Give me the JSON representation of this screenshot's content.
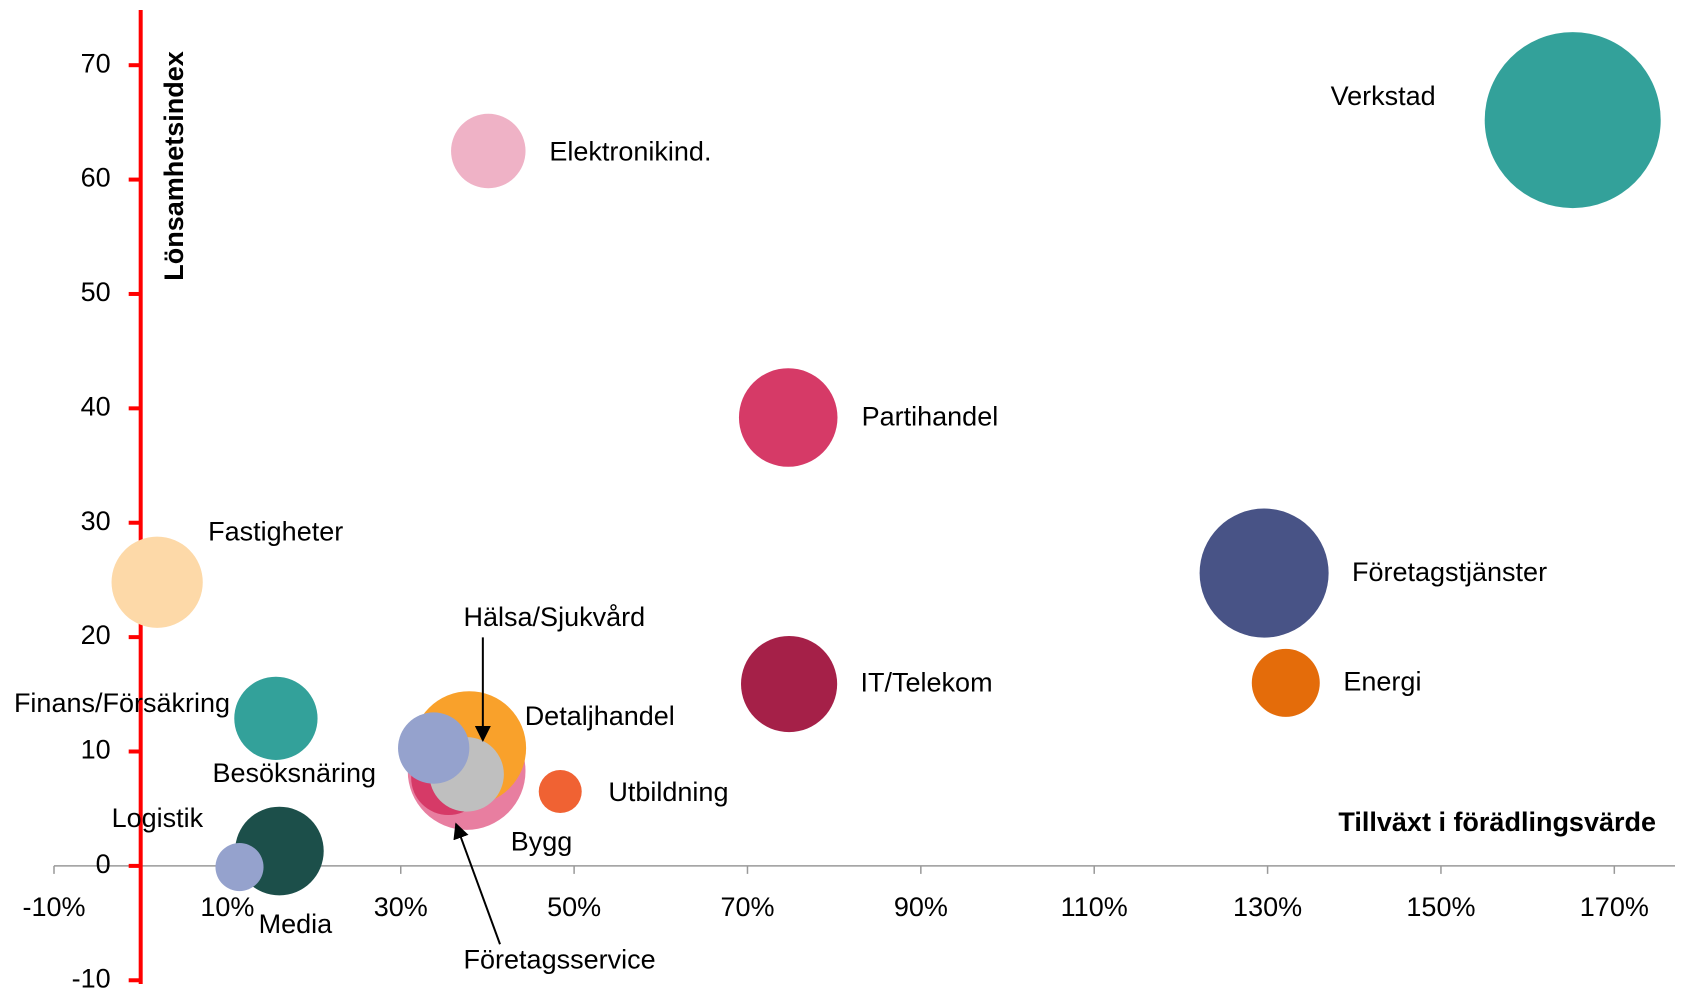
{
  "chart_data": {
    "type": "bubble",
    "x_label": "Tillväxt i förädlingsvärde",
    "y_label": "Lönsamhetsindex",
    "xlim": [
      -10,
      177
    ],
    "ylim": [
      -10.5,
      75
    ],
    "xticks": [
      {
        "value": -10,
        "label": "-10%"
      },
      {
        "value": 10,
        "label": "10%"
      },
      {
        "value": 30,
        "label": "30%"
      },
      {
        "value": 50,
        "label": "50%"
      },
      {
        "value": 70,
        "label": "70%"
      },
      {
        "value": 90,
        "label": "90%"
      },
      {
        "value": 110,
        "label": "110%"
      },
      {
        "value": 130,
        "label": "130%"
      },
      {
        "value": 150,
        "label": "150%"
      },
      {
        "value": 170,
        "label": "170%"
      }
    ],
    "yticks": [
      -10,
      0,
      10,
      20,
      30,
      40,
      50,
      60,
      70
    ],
    "y_axis_color": "#ff0000",
    "series": [
      {
        "name": "Verkstad",
        "color": "#33a19a",
        "x": 165.2,
        "y": 65.2,
        "size": 67
      },
      {
        "name": "Elektronikind.",
        "color": "#efb2c6",
        "x": 40.1,
        "y": 62.5,
        "size": 12
      },
      {
        "name": "Partihandel",
        "color": "#d63a67",
        "x": 74.7,
        "y": 39.2,
        "size": 21
      },
      {
        "name": "Fastigheter",
        "color": "#fdd9a8",
        "x": 1.9,
        "y": 24.8,
        "size": 18
      },
      {
        "name": "Företagstjänster",
        "color": "#485386",
        "x": 129.6,
        "y": 25.6,
        "size": 36
      },
      {
        "name": "Energi",
        "color": "#e46c0a",
        "x": 132.1,
        "y": 16.0,
        "size": 10
      },
      {
        "name": "IT/Telekom",
        "color": "#a52048",
        "x": 74.8,
        "y": 15.9,
        "size": 20
      },
      {
        "name": "Finans/Försäkring",
        "color": "#33a19a",
        "x": 15.6,
        "y": 12.9,
        "size": 15
      },
      {
        "name": "Bygg",
        "color": "#e87ea0",
        "x": 37.6,
        "y": 8.3,
        "size": 30
      },
      {
        "name": "Detaljhandel",
        "color": "#f9a12b",
        "x": 37.9,
        "y": 10.3,
        "size": 28
      },
      {
        "name": "Företagsservice",
        "color": "#d63a67",
        "x": 35.5,
        "y": 7.7,
        "size": 12
      },
      {
        "name": "Hälsa/Sjukvård",
        "color": "#bfbfbf",
        "x": 37.6,
        "y": 8.0,
        "size": 12
      },
      {
        "name": "Besöksnäring",
        "color": "#95a2cd",
        "x": 33.8,
        "y": 10.3,
        "size": 11
      },
      {
        "name": "Utbildning",
        "color": "#f06233",
        "x": 48.4,
        "y": 6.5,
        "size": 4
      },
      {
        "name": "Media",
        "color": "#1c4f4a",
        "x": 16.0,
        "y": 1.3,
        "size": 17
      },
      {
        "name": "Logistik",
        "color": "#95a2cd",
        "x": 11.4,
        "y": -0.1,
        "size": 5
      }
    ]
  }
}
